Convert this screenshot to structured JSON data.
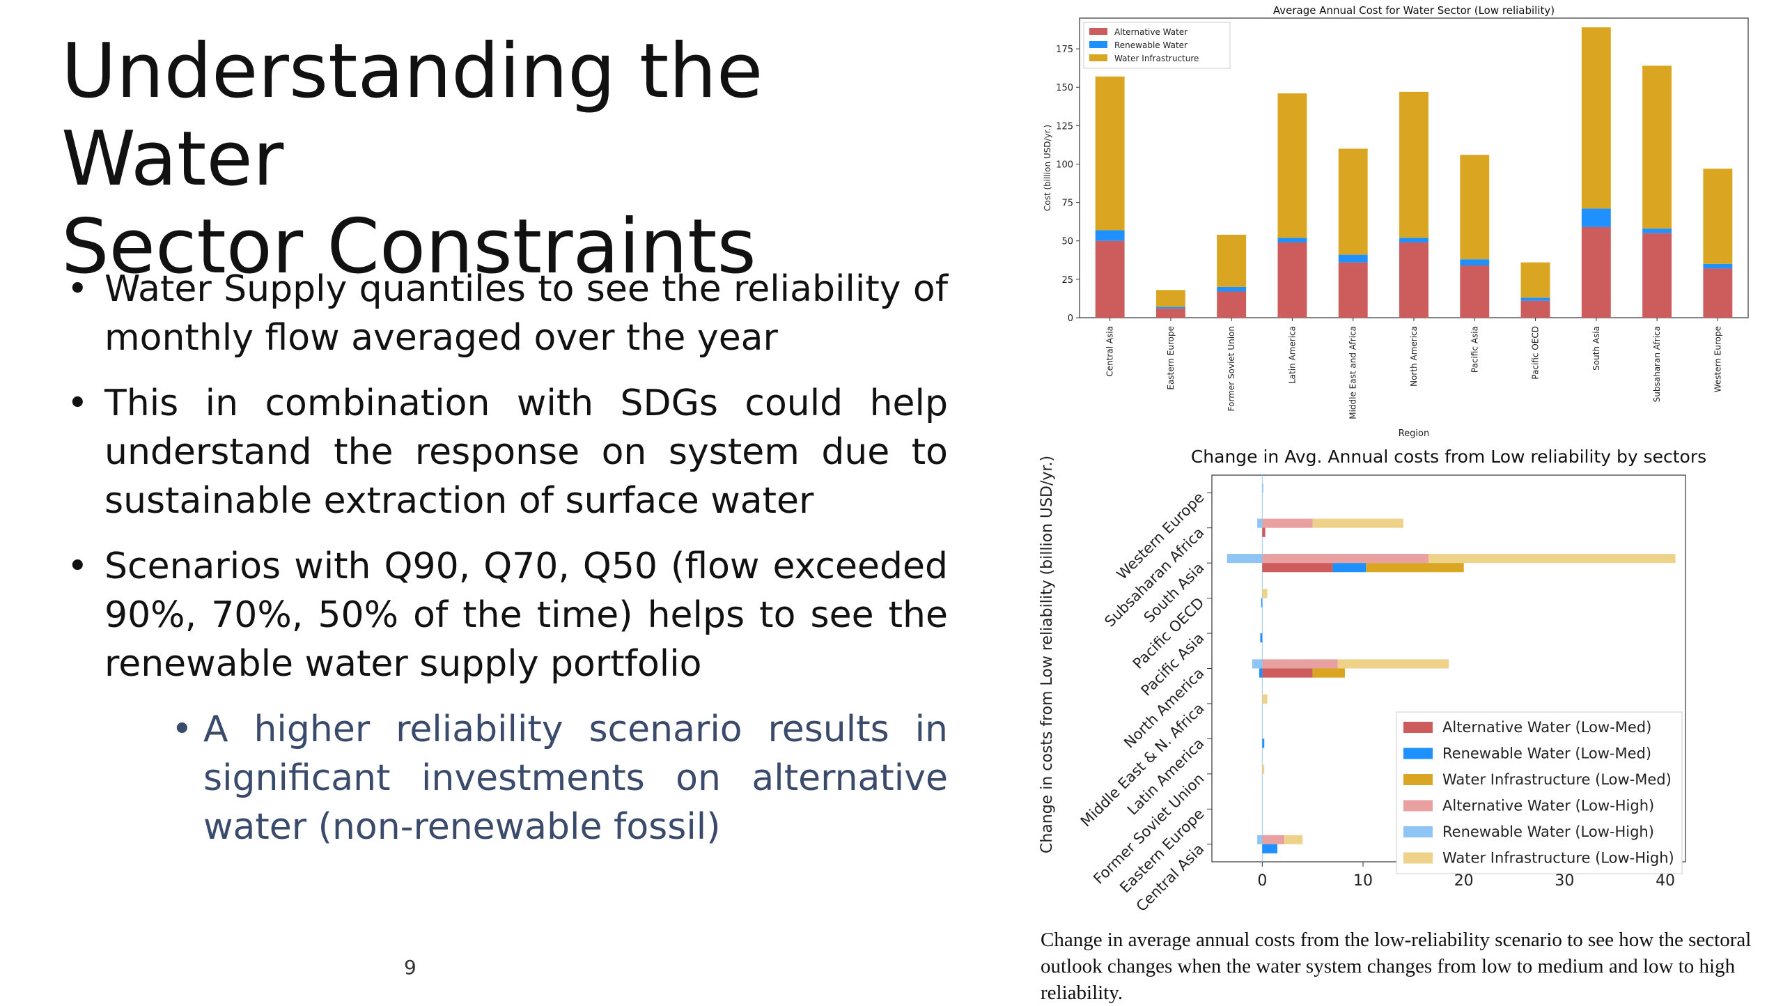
{
  "slide": {
    "title_line1": "Understanding the Water",
    "title_line2": "Sector Constraints",
    "bullets": [
      "Water Supply quantiles to see the reliability of monthly flow averaged over the year",
      "This in combination with SDGs could help understand the response on system due to sustainable extraction of surface water",
      "Scenarios with Q90, Q70, Q50 (flow exceeded 90%, 70%, 50% of the time) helps to see the renewable water supply portfolio"
    ],
    "sub_bullet": "A higher reliability scenario results in significant investments on alternative water (non-renewable fossil)",
    "page_number": "9",
    "caption": "Change in average annual costs from the low-reliability scenario to see how the sectoral outlook changes when the water system changes from low to medium and low to high reliability."
  },
  "chart_data": [
    {
      "type": "bar",
      "stacked": true,
      "title": "Average Annual Cost for Water Sector (Low reliability)",
      "xlabel": "Region",
      "ylabel": "Cost (billion USD/yr.)",
      "ylim": [
        0,
        195
      ],
      "yticks": [
        0,
        25,
        50,
        75,
        100,
        125,
        150,
        175
      ],
      "legend_position": "top-left",
      "categories": [
        "Central Asia",
        "Eastern Europe",
        "Former Soviet Union",
        "Latin America",
        "Middle East and Africa",
        "North America",
        "Pacific Asia",
        "Pacific OECD",
        "South Asia",
        "Subsaharan Africa",
        "Western Europe"
      ],
      "series": [
        {
          "name": "Alternative Water",
          "color": "#cd5c5c",
          "values": [
            50,
            6,
            17,
            49,
            36,
            49,
            34,
            11,
            59,
            55,
            32
          ]
        },
        {
          "name": "Renewable Water",
          "color": "#1e90ff",
          "values": [
            7,
            1,
            3,
            3,
            5,
            3,
            4,
            2,
            12,
            3,
            3
          ]
        },
        {
          "name": "Water Infrastructure",
          "color": "#daa520",
          "values": [
            100,
            11,
            34,
            94,
            69,
            95,
            68,
            23,
            118,
            106,
            62
          ]
        }
      ]
    },
    {
      "type": "bar",
      "orientation": "horizontal",
      "title": "Change in Avg. Annual costs from Low reliability by sectors",
      "xlabel": "",
      "ylabel": "Change in costs from Low reliability (billion USD/yr.)",
      "xlim": [
        -5,
        42
      ],
      "xticks": [
        0,
        10,
        20,
        30,
        40
      ],
      "legend_position": "lower-right",
      "categories": [
        "Central Asia",
        "Eastern Europe",
        "Former Soviet Union",
        "Latin America",
        "Middle East & N. Africa",
        "North America",
        "Pacific Asia",
        "Pacific OECD",
        "South Asia",
        "Subsaharan Africa",
        "Western Europe"
      ],
      "series": [
        {
          "name": "Alternative Water (Low-Med)",
          "color": "#cd5c5c",
          "group": "med",
          "values": [
            0,
            0,
            0,
            0,
            0,
            5,
            0,
            0,
            7,
            0.3,
            0
          ]
        },
        {
          "name": "Renewable Water (Low-Med)",
          "color": "#1e90ff",
          "group": "med",
          "values": [
            1.5,
            0,
            0,
            0.2,
            0,
            -0.3,
            -0.2,
            -0.1,
            3.3,
            0,
            0
          ]
        },
        {
          "name": "Water Infrastructure (Low-Med)",
          "color": "#daa520",
          "group": "med",
          "values": [
            0,
            0,
            0,
            0,
            0,
            3.2,
            0,
            0,
            9.7,
            0,
            0
          ]
        },
        {
          "name": "Alternative Water (Low-High)",
          "color": "#e8a0a0",
          "group": "high",
          "values": [
            2.2,
            0,
            0,
            0,
            0,
            7.5,
            0,
            0,
            16.5,
            5,
            0
          ]
        },
        {
          "name": "Renewable Water (Low-High)",
          "color": "#8ec5f5",
          "group": "high",
          "values": [
            -0.5,
            0,
            0,
            0,
            0,
            -1,
            0,
            0,
            -3.5,
            -0.5,
            0.1
          ]
        },
        {
          "name": "Water Infrastructure (Low-High)",
          "color": "#eed28a",
          "group": "high",
          "values": [
            1.8,
            0,
            0.2,
            0,
            0.5,
            11,
            0,
            0.5,
            24.5,
            9,
            0
          ]
        }
      ]
    }
  ]
}
